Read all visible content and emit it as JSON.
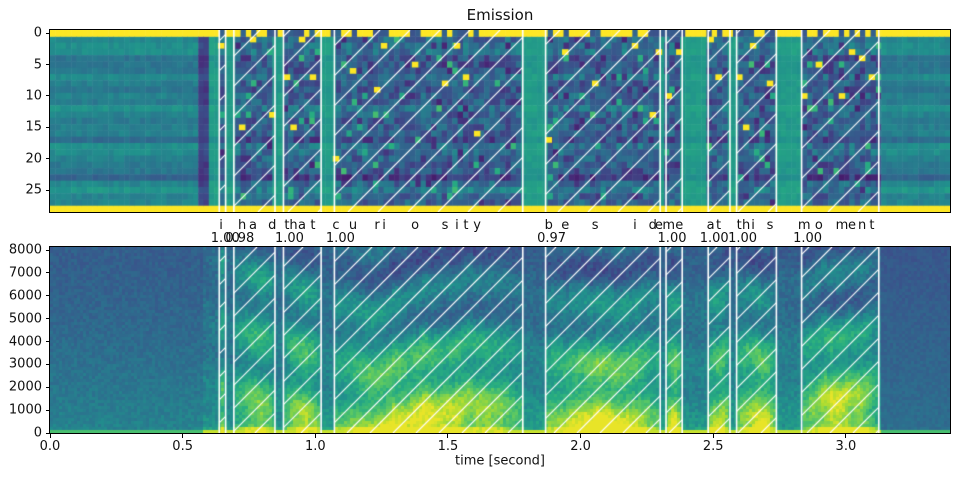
{
  "figure": {
    "title": "Emission",
    "xlabel": "time [second]"
  },
  "palette": {
    "colormap": "viridis",
    "hatch_color": "#ffffff",
    "peak_color": "#fde725",
    "text_color": "#111111",
    "background": "#ffffff"
  },
  "chart_data": [
    {
      "type": "heatmap",
      "title": "Emission",
      "content": "CTC frame-wise token posteriors (viridis colormap). Row 0 (blank token) and bottom row (star token) are saturated yellow across all frames; single yellow cells mark each aligned character token; word spans overlaid as white '/'-hatched regions.",
      "n_token_rows": 29,
      "yticks": [
        0,
        5,
        10,
        15,
        20,
        25
      ],
      "x_range_seconds": [
        0.0,
        3.39
      ],
      "speech_range_seconds": [
        0.6,
        3.13
      ],
      "legend": "none",
      "grid": false
    },
    {
      "type": "heatmap",
      "subtype": "spectrogram",
      "content": "Log-frequency-power spectrogram (viridis) of the utterance with the same white hatched word-alignment spans overlaid.",
      "xlabel": "time [second]",
      "yticks": [
        0,
        1000,
        2000,
        3000,
        4000,
        5000,
        6000,
        7000,
        8000
      ],
      "xticks": [
        0.0,
        0.5,
        1.0,
        1.5,
        2.0,
        2.5,
        3.0
      ],
      "xtick_labels": [
        "0.0",
        "0.5",
        "1.0",
        "1.5",
        "2.0",
        "2.5",
        "3.0"
      ],
      "ylim_hz": [
        0,
        8000
      ],
      "xlim_seconds": [
        0.0,
        3.39
      ],
      "legend": "none",
      "grid": false
    }
  ],
  "alignment": {
    "transcript": "i had that curiosity beside me at this moment",
    "words": [
      {
        "word": "i",
        "score": "1.00",
        "start": 0.638,
        "end": 0.662,
        "chars": [
          {
            "ch": "i",
            "t": 0.645,
            "row": 2
          }
        ]
      },
      {
        "word": "had",
        "score": "0.98",
        "start": 0.693,
        "end": 0.848,
        "chars": [
          {
            "ch": "h",
            "t": 0.724,
            "row": 15
          },
          {
            "ch": "a",
            "t": 0.765,
            "row": 1
          },
          {
            "ch": "d",
            "t": 0.838,
            "row": 13
          }
        ]
      },
      {
        "word": "that",
        "score": "1.00",
        "start": 0.88,
        "end": 1.022,
        "chars": [
          {
            "ch": "t",
            "t": 0.893,
            "row": 7
          },
          {
            "ch": "h",
            "t": 0.918,
            "row": 15
          },
          {
            "ch": "a",
            "t": 0.95,
            "row": 1
          },
          {
            "ch": "t",
            "t": 0.991,
            "row": 7
          }
        ]
      },
      {
        "word": "curiosity",
        "score": "1.00",
        "start": 1.072,
        "end": 1.782,
        "chars": [
          {
            "ch": "c",
            "t": 1.078,
            "row": 20
          },
          {
            "ch": "u",
            "t": 1.142,
            "row": 6
          },
          {
            "ch": "r",
            "t": 1.233,
            "row": 9
          },
          {
            "ch": "i",
            "t": 1.259,
            "row": 2
          },
          {
            "ch": "o",
            "t": 1.376,
            "row": 5
          },
          {
            "ch": "s",
            "t": 1.489,
            "row": 8
          },
          {
            "ch": "i",
            "t": 1.534,
            "row": 2
          },
          {
            "ch": "t",
            "t": 1.568,
            "row": 7
          },
          {
            "ch": "y",
            "t": 1.61,
            "row": 16
          }
        ]
      },
      {
        "word": "beside",
        "score": "0.97",
        "start": 1.868,
        "end": 2.3,
        "chars": [
          {
            "ch": "b",
            "t": 1.88,
            "row": 17
          },
          {
            "ch": "e",
            "t": 1.942,
            "row": 3
          },
          {
            "ch": "s",
            "t": 2.055,
            "row": 8
          },
          {
            "ch": "i",
            "t": 2.205,
            "row": 2
          },
          {
            "ch": "d",
            "t": 2.272,
            "row": 13
          },
          {
            "ch": "e",
            "t": 2.295,
            "row": 3
          }
        ]
      },
      {
        "word": "me",
        "score": "1.00",
        "start": 2.322,
        "end": 2.383,
        "chars": [
          {
            "ch": "m",
            "t": 2.332,
            "row": 10
          },
          {
            "ch": "e",
            "t": 2.372,
            "row": 3
          }
        ]
      },
      {
        "word": "at",
        "score": "1.00",
        "start": 2.481,
        "end": 2.563,
        "chars": [
          {
            "ch": "a",
            "t": 2.49,
            "row": 1
          },
          {
            "ch": "t",
            "t": 2.52,
            "row": 7
          }
        ]
      },
      {
        "word": "this",
        "score": "1.00",
        "start": 2.588,
        "end": 2.738,
        "chars": [
          {
            "ch": "t",
            "t": 2.598,
            "row": 7
          },
          {
            "ch": "h",
            "t": 2.624,
            "row": 15
          },
          {
            "ch": "i",
            "t": 2.65,
            "row": 2
          },
          {
            "ch": "s",
            "t": 2.714,
            "row": 8
          }
        ]
      },
      {
        "word": "moment",
        "score": "1.00",
        "start": 2.833,
        "end": 3.124,
        "chars": [
          {
            "ch": "m",
            "t": 2.843,
            "row": 10
          },
          {
            "ch": "o",
            "t": 2.898,
            "row": 5
          },
          {
            "ch": "m",
            "t": 2.985,
            "row": 10
          },
          {
            "ch": "e",
            "t": 3.023,
            "row": 3
          },
          {
            "ch": "n",
            "t": 3.061,
            "row": 4
          },
          {
            "ch": "t",
            "t": 3.098,
            "row": 7
          }
        ]
      }
    ]
  }
}
